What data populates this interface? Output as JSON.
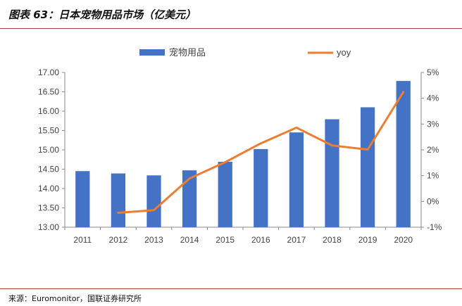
{
  "header": {
    "title": "图表 63：日本宠物用品市场（亿美元）"
  },
  "footer": {
    "source": "来源：Euromonitor，国联证券研究所"
  },
  "colors": {
    "bar": "#4472C4",
    "line": "#ED7D31",
    "rule": "#b03a3a"
  },
  "chart_data": {
    "type": "bar",
    "categories": [
      "2011",
      "2012",
      "2013",
      "2014",
      "2015",
      "2016",
      "2017",
      "2018",
      "2019",
      "2020"
    ],
    "series": [
      {
        "name": "宠物用品",
        "type": "bar",
        "axis": "left",
        "values": [
          14.45,
          14.39,
          14.34,
          14.47,
          14.69,
          15.02,
          15.45,
          15.79,
          16.1,
          16.78
        ]
      },
      {
        "name": "yoy",
        "type": "line",
        "axis": "right",
        "values": [
          null,
          -0.44,
          -0.34,
          0.89,
          1.52,
          2.25,
          2.86,
          2.17,
          2.01,
          4.24
        ]
      }
    ],
    "ylim": [
      13.0,
      17.0
    ],
    "yticks": [
      "13.00",
      "13.50",
      "14.00",
      "14.50",
      "15.00",
      "15.50",
      "16.00",
      "16.50",
      "17.00"
    ],
    "y2lim": [
      -1,
      5
    ],
    "y2ticks": [
      "-1%",
      "0%",
      "1%",
      "2%",
      "3%",
      "4%",
      "5%"
    ],
    "legend_position": "top",
    "grid": false
  }
}
